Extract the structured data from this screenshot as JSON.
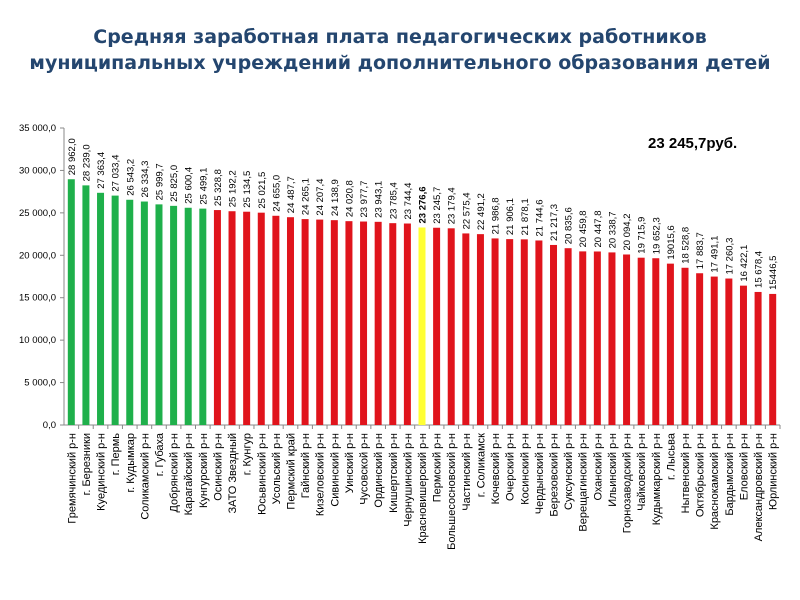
{
  "chart_data": {
    "type": "bar",
    "title": [
      "Средняя заработная плата педагогических работников",
      "муниципальных учреждений дополнительного образования детей"
    ],
    "annotation": "23 245,7руб.",
    "ylim": [
      0,
      35000
    ],
    "yticks": [
      "0,0",
      "5 000,0",
      "10 000,0",
      "15 000,0",
      "20 000,0",
      "25 000,0",
      "30 000,0",
      "35 000,0"
    ],
    "grid": false,
    "legend": "none",
    "colors": {
      "above": "#1fb04b",
      "below": "#e0141c",
      "highlight": "#ffff33"
    },
    "categories": [
      "Гремячинский р-н",
      "г. Березники",
      "Куединский р-н",
      "г. Пермь",
      "г. Кудымкар",
      "Соликамский р-н",
      "г. Губаха",
      "Добрянский р-н",
      "Карагайский р-н",
      "Кунгурский р-н",
      "Осинский р-н",
      "ЗАТО Звездный",
      "г. Кунгур",
      "Юсьвинский р-н",
      "Усольский р-н",
      "Пермский край",
      "Гайнский р-н",
      "Кизеловский р-н",
      "Сивинский р-н",
      "Уинский р-н",
      "Чусовской р-н",
      "Ординский р-н",
      "Кишертский р-н",
      "Чернушинский р-н",
      "Красновишерский р-н",
      "Пермский р-н",
      "Большесосновский р-н",
      "Частинский р-н",
      "г. Соликамск",
      "Кочевский р-н",
      "Очерский р-н",
      "Косинский р-н",
      "Чердынский р-н",
      "Березовский р-н",
      "Суксунский р-н",
      "Верещагинский р-н",
      "Оханский р-н",
      "Ильинский р-н",
      "Горнозаводский р-н",
      "Чайковский р-н",
      "Кудымкарский р-н",
      "г. Лысьва",
      "Нытвенский р-н",
      "Октябрьский р-н",
      "Краснокамский р-н",
      "Бардымский р-н",
      "Еловский р-н",
      "Александровский р-н",
      "Юрлинский р-н"
    ],
    "values": [
      28962.0,
      28239.0,
      27363.4,
      27033.4,
      26543.2,
      26334.3,
      25999.7,
      25825.0,
      25600.4,
      25499.1,
      25328.8,
      25192.2,
      25134.5,
      25021.5,
      24655.0,
      24487.7,
      24265.1,
      24207.4,
      24138.9,
      24020.8,
      23977.7,
      23943.1,
      23785.4,
      23744.4,
      23276.6,
      23245.7,
      23179.4,
      22575.4,
      22491.2,
      21986.8,
      21906.1,
      21878.1,
      21744.6,
      21217.3,
      20835.6,
      20459.8,
      20447.8,
      20338.7,
      20094.2,
      19715.9,
      19652.3,
      19015.6,
      18528.8,
      17883.7,
      17491.1,
      17260.3,
      16422.1,
      15678.4,
      15446.5
    ],
    "value_labels": [
      "28 962,0",
      "28 239,0",
      "27 363,4",
      "27 033,4",
      "26 543,2",
      "26 334,3",
      "25 999,7",
      "25 825,0",
      "25 600,4",
      "25 499,1",
      "25 328,8",
      "25 192,2",
      "25 134,5",
      "25 021,5",
      "24 655,0",
      "24 487,7",
      "24 265,1",
      "24 207,4",
      "24 138,9",
      "24 020,8",
      "23 977,7",
      "23 943,1",
      "23 785,4",
      "23 744,4",
      "23 276,6",
      "23 245,7",
      "23 179,4",
      "22 575,4",
      "22 491,2",
      "21 986,8",
      "21 906,1",
      "21 878,1",
      "21 744,6",
      "21 217,3",
      "20 835,6",
      "20 459,8",
      "20 447,8",
      "20 338,7",
      "20 094,2",
      "19 715,9",
      "19 652,3",
      "19015,6",
      "18 528,8",
      "17 883,7",
      "17 491,1",
      "17 260,3",
      "16 422,1",
      "15 678,4",
      "15446,5"
    ],
    "bar_colors": [
      "above",
      "above",
      "above",
      "above",
      "above",
      "above",
      "above",
      "above",
      "above",
      "above",
      "below",
      "below",
      "below",
      "below",
      "below",
      "below",
      "below",
      "below",
      "below",
      "below",
      "below",
      "below",
      "below",
      "below",
      "highlight",
      "below",
      "below",
      "below",
      "below",
      "below",
      "below",
      "below",
      "below",
      "below",
      "below",
      "below",
      "below",
      "below",
      "below",
      "below",
      "below",
      "below",
      "below",
      "below",
      "below",
      "below",
      "below",
      "below",
      "below"
    ],
    "highlight_index": 24
  }
}
